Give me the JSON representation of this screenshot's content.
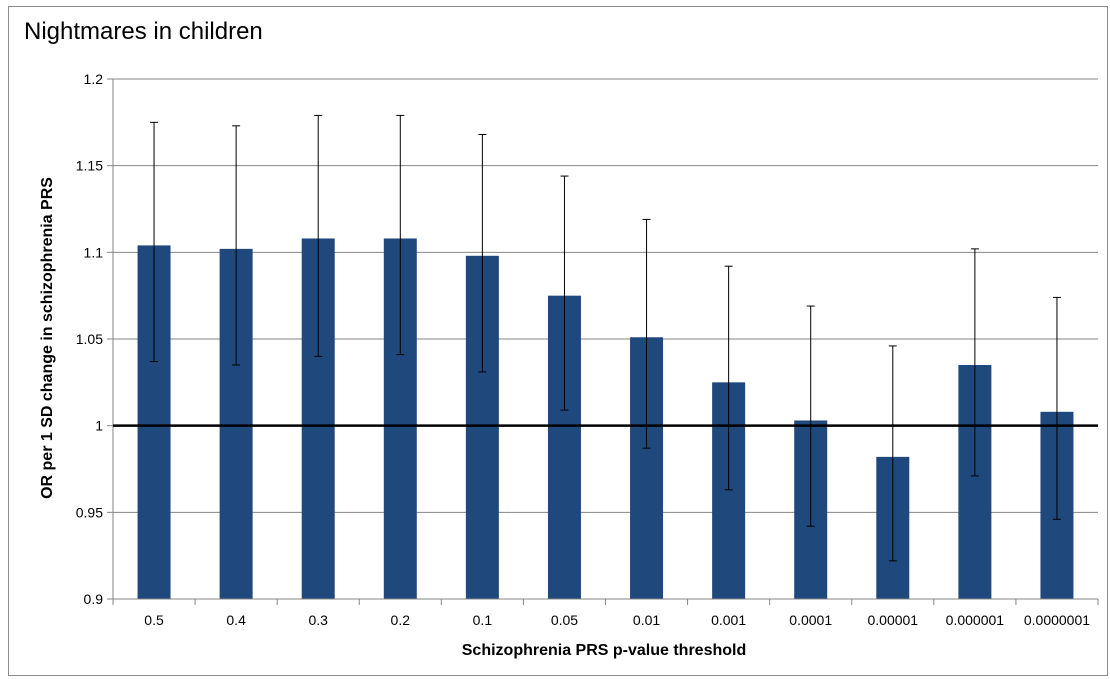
{
  "chart_data": {
    "type": "bar",
    "title": "Nightmares in children",
    "xlabel": "Schizophrenia PRS p-value threshold",
    "ylabel": "OR per 1 SD change in schizophrenia PRS",
    "categories": [
      "0.5",
      "0.4",
      "0.3",
      "0.2",
      "0.1",
      "0.05",
      "0.01",
      "0.001",
      "0.0001",
      "0.00001",
      "0.000001",
      "0.0000001"
    ],
    "values": [
      1.104,
      1.102,
      1.108,
      1.108,
      1.098,
      1.075,
      1.051,
      1.025,
      1.003,
      0.982,
      1.035,
      1.008
    ],
    "error_low": [
      1.037,
      1.035,
      1.04,
      1.041,
      1.031,
      1.009,
      0.987,
      0.963,
      0.942,
      0.922,
      0.971,
      0.946
    ],
    "error_high": [
      1.175,
      1.173,
      1.179,
      1.179,
      1.168,
      1.144,
      1.119,
      1.092,
      1.069,
      1.046,
      1.102,
      1.074
    ],
    "ylim": [
      0.9,
      1.2
    ],
    "yticks": [
      "0.9",
      "0.95",
      "1",
      "1.05",
      "1.1",
      "1.15",
      "1.2"
    ],
    "reference_line": 1,
    "grid": true,
    "bar_color": "#1f497d",
    "reference_line_color": "#000000",
    "gridline_color": "#868686"
  }
}
